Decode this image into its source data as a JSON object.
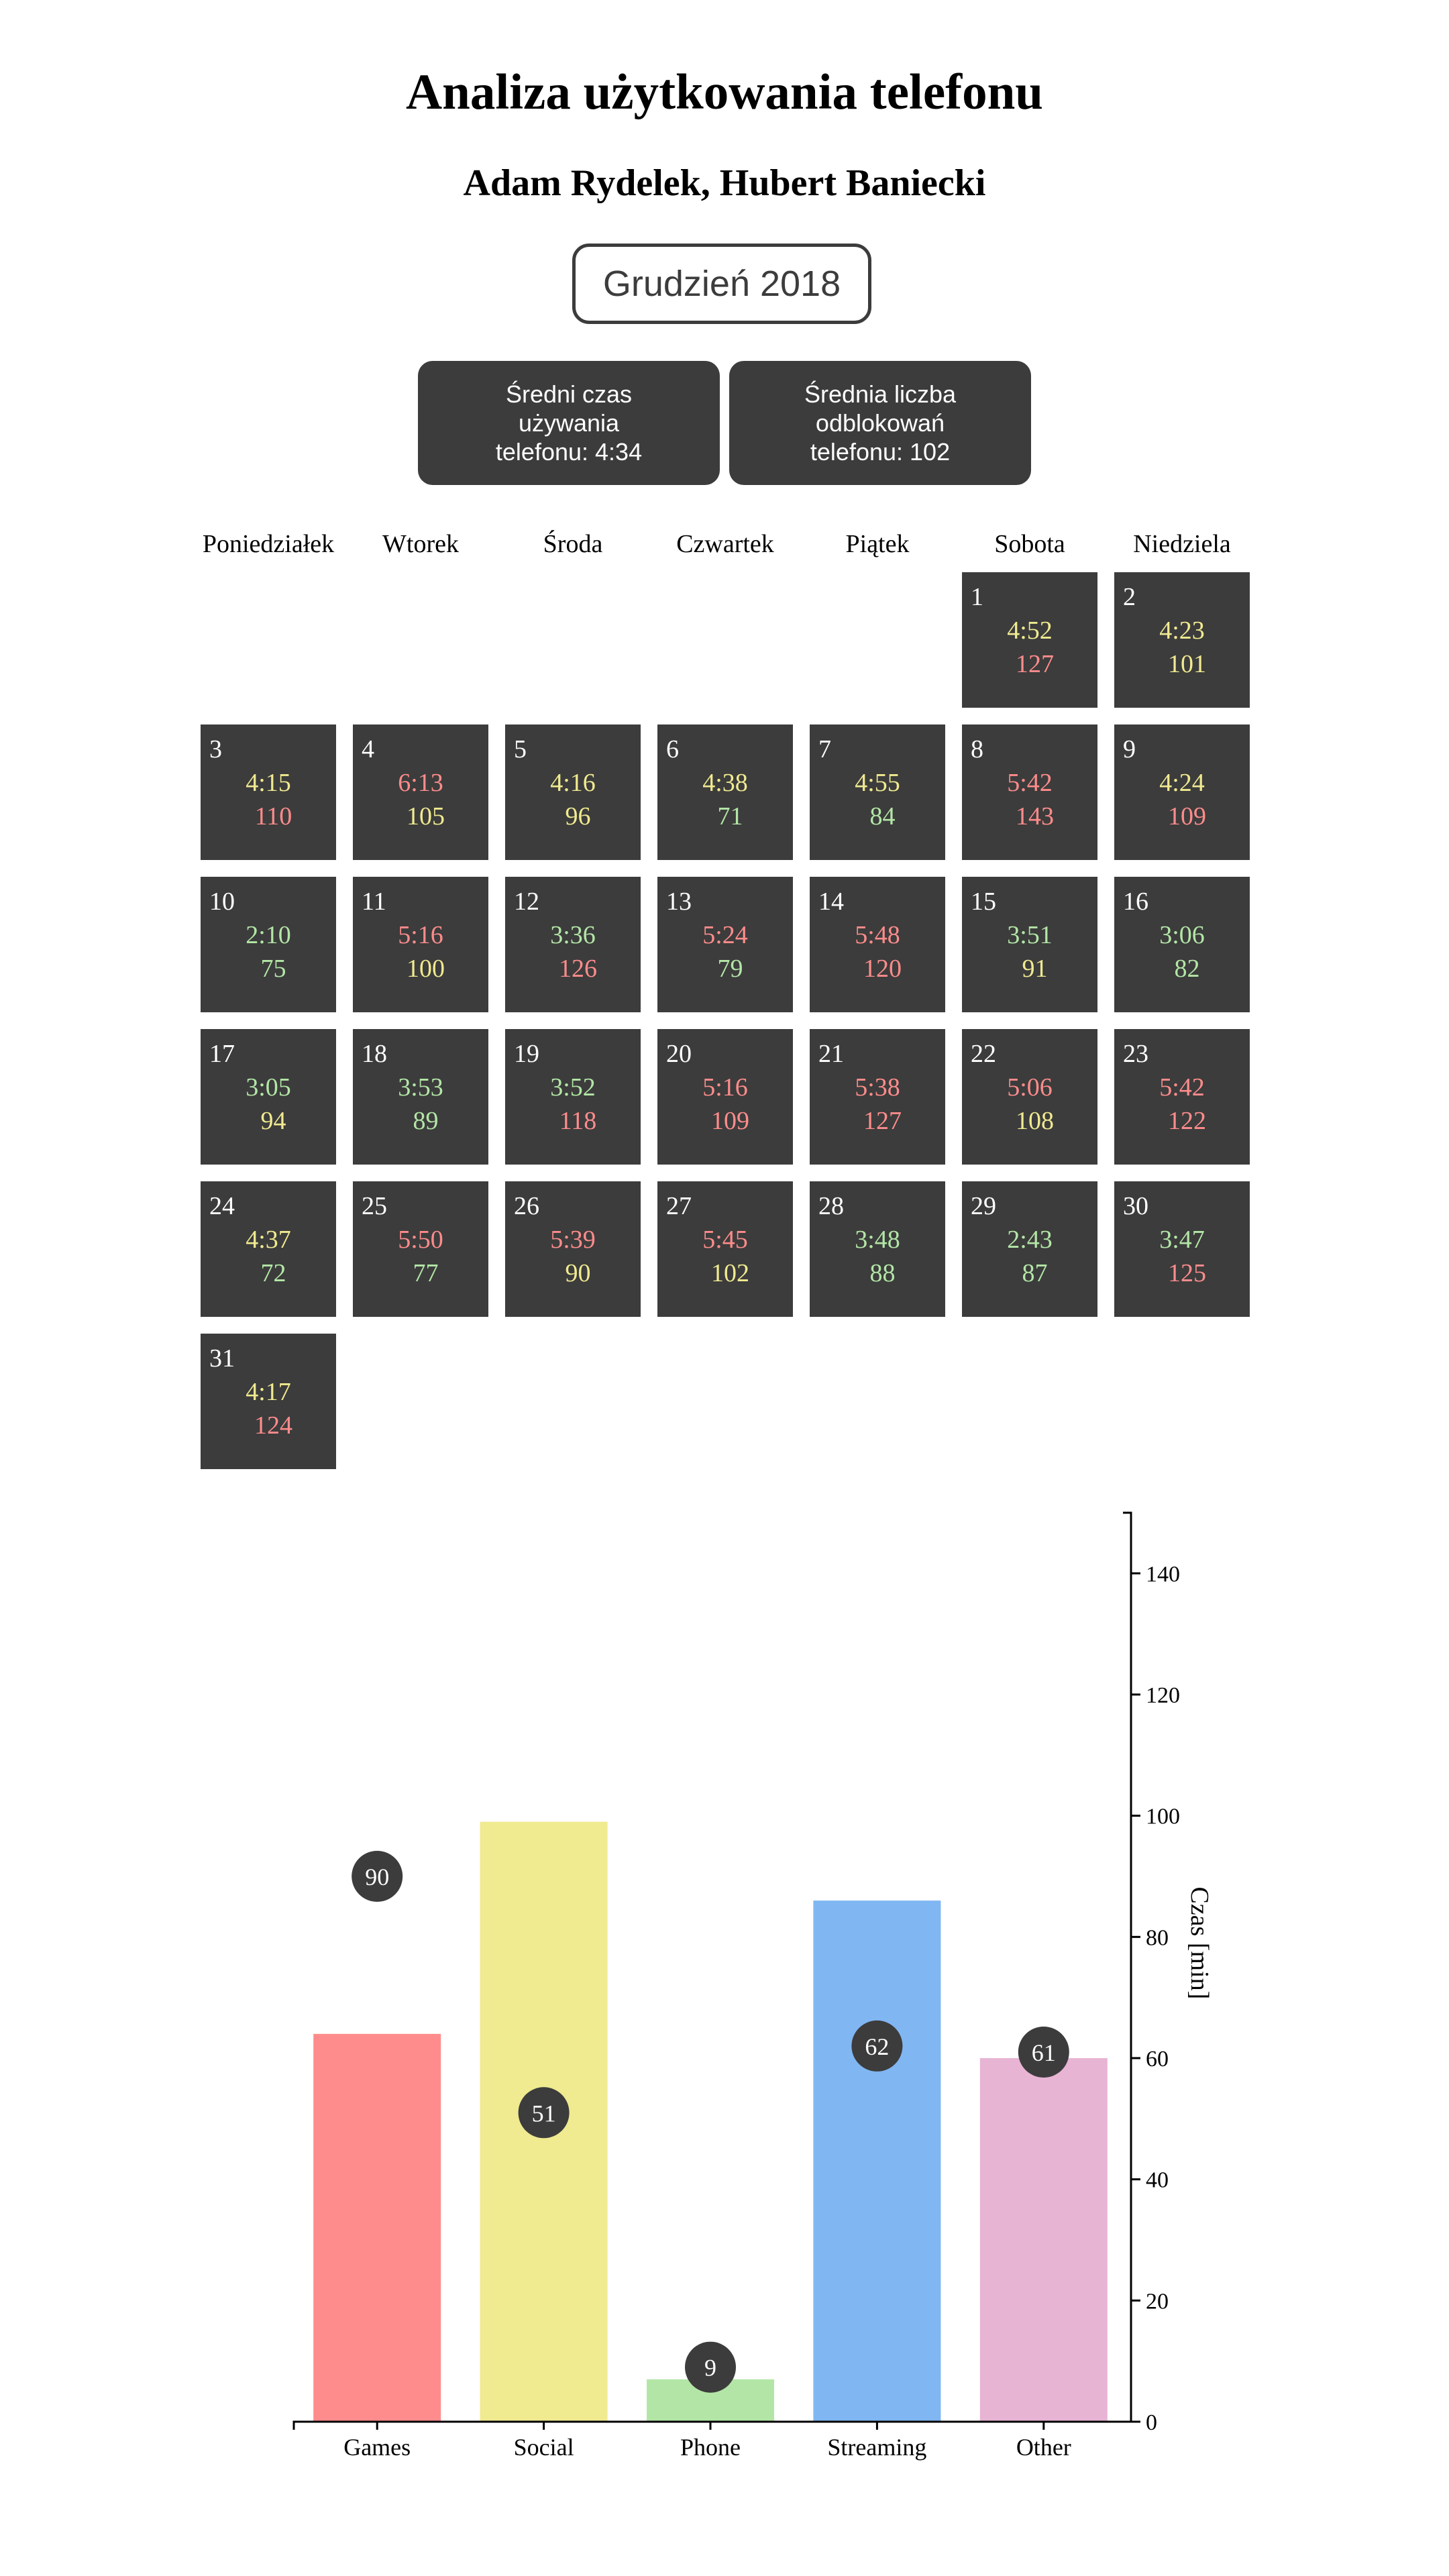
{
  "header": {
    "title": "Analiza użytkowania telefonu",
    "authors": "Adam Rydelek, Hubert Baniecki",
    "month_button": "Grudzień 2018"
  },
  "stats": {
    "avg_time": "Średni czas używania telefonu: 4:34",
    "avg_unlocks": "Średnia liczba odblokowań telefonu: 102"
  },
  "colors": {
    "tile": "#3c3c3c",
    "green": "#b3e6a6",
    "yellow": "#f0ea90",
    "red": "#ff8c8c"
  },
  "calendar": {
    "weekdays": [
      "Poniedziałek",
      "Wtorek",
      "Środa",
      "Czwartek",
      "Piątek",
      "Sobota",
      "Niedziela"
    ],
    "first_weekday_index": 5,
    "days": [
      {
        "day": "1",
        "time": "4:52",
        "time_color": "yellow",
        "unlocks": "127",
        "unlocks_color": "red"
      },
      {
        "day": "2",
        "time": "4:23",
        "time_color": "yellow",
        "unlocks": "101",
        "unlocks_color": "yellow"
      },
      {
        "day": "3",
        "time": "4:15",
        "time_color": "yellow",
        "unlocks": "110",
        "unlocks_color": "red"
      },
      {
        "day": "4",
        "time": "6:13",
        "time_color": "red",
        "unlocks": "105",
        "unlocks_color": "yellow"
      },
      {
        "day": "5",
        "time": "4:16",
        "time_color": "yellow",
        "unlocks": "96",
        "unlocks_color": "yellow"
      },
      {
        "day": "6",
        "time": "4:38",
        "time_color": "yellow",
        "unlocks": "71",
        "unlocks_color": "green"
      },
      {
        "day": "7",
        "time": "4:55",
        "time_color": "yellow",
        "unlocks": "84",
        "unlocks_color": "green"
      },
      {
        "day": "8",
        "time": "5:42",
        "time_color": "red",
        "unlocks": "143",
        "unlocks_color": "red"
      },
      {
        "day": "9",
        "time": "4:24",
        "time_color": "yellow",
        "unlocks": "109",
        "unlocks_color": "red"
      },
      {
        "day": "10",
        "time": "2:10",
        "time_color": "green",
        "unlocks": "75",
        "unlocks_color": "green"
      },
      {
        "day": "11",
        "time": "5:16",
        "time_color": "red",
        "unlocks": "100",
        "unlocks_color": "yellow"
      },
      {
        "day": "12",
        "time": "3:36",
        "time_color": "green",
        "unlocks": "126",
        "unlocks_color": "red"
      },
      {
        "day": "13",
        "time": "5:24",
        "time_color": "red",
        "unlocks": "79",
        "unlocks_color": "green"
      },
      {
        "day": "14",
        "time": "5:48",
        "time_color": "red",
        "unlocks": "120",
        "unlocks_color": "red"
      },
      {
        "day": "15",
        "time": "3:51",
        "time_color": "green",
        "unlocks": "91",
        "unlocks_color": "yellow"
      },
      {
        "day": "16",
        "time": "3:06",
        "time_color": "green",
        "unlocks": "82",
        "unlocks_color": "green"
      },
      {
        "day": "17",
        "time": "3:05",
        "time_color": "green",
        "unlocks": "94",
        "unlocks_color": "yellow"
      },
      {
        "day": "18",
        "time": "3:53",
        "time_color": "green",
        "unlocks": "89",
        "unlocks_color": "green"
      },
      {
        "day": "19",
        "time": "3:52",
        "time_color": "green",
        "unlocks": "118",
        "unlocks_color": "red"
      },
      {
        "day": "20",
        "time": "5:16",
        "time_color": "red",
        "unlocks": "109",
        "unlocks_color": "red"
      },
      {
        "day": "21",
        "time": "5:38",
        "time_color": "red",
        "unlocks": "127",
        "unlocks_color": "red"
      },
      {
        "day": "22",
        "time": "5:06",
        "time_color": "red",
        "unlocks": "108",
        "unlocks_color": "yellow"
      },
      {
        "day": "23",
        "time": "5:42",
        "time_color": "red",
        "unlocks": "122",
        "unlocks_color": "red"
      },
      {
        "day": "24",
        "time": "4:37",
        "time_color": "yellow",
        "unlocks": "72",
        "unlocks_color": "green"
      },
      {
        "day": "25",
        "time": "5:50",
        "time_color": "red",
        "unlocks": "77",
        "unlocks_color": "green"
      },
      {
        "day": "26",
        "time": "5:39",
        "time_color": "red",
        "unlocks": "90",
        "unlocks_color": "yellow"
      },
      {
        "day": "27",
        "time": "5:45",
        "time_color": "red",
        "unlocks": "102",
        "unlocks_color": "yellow"
      },
      {
        "day": "28",
        "time": "3:48",
        "time_color": "green",
        "unlocks": "88",
        "unlocks_color": "green"
      },
      {
        "day": "29",
        "time": "2:43",
        "time_color": "green",
        "unlocks": "87",
        "unlocks_color": "green"
      },
      {
        "day": "30",
        "time": "3:47",
        "time_color": "green",
        "unlocks": "125",
        "unlocks_color": "red"
      },
      {
        "day": "31",
        "time": "4:17",
        "time_color": "yellow",
        "unlocks": "124",
        "unlocks_color": "red"
      }
    ]
  },
  "chart_data": {
    "type": "bar",
    "categories": [
      "Games",
      "Social",
      "Phone",
      "Streaming",
      "Other"
    ],
    "values": [
      64,
      99,
      7,
      86,
      60
    ],
    "bar_colors": [
      "#ff8c8c",
      "#f0ea90",
      "#b3e6a6",
      "#80b6f2",
      "#e8b4d4"
    ],
    "circle_labels": [
      90,
      51,
      9,
      62,
      61
    ],
    "ylabel": "Czas [min]",
    "ylim": [
      0,
      150
    ],
    "yticks": [
      0,
      20,
      40,
      60,
      80,
      100,
      120,
      140
    ],
    "y_axis_side": "right",
    "grid": false
  }
}
